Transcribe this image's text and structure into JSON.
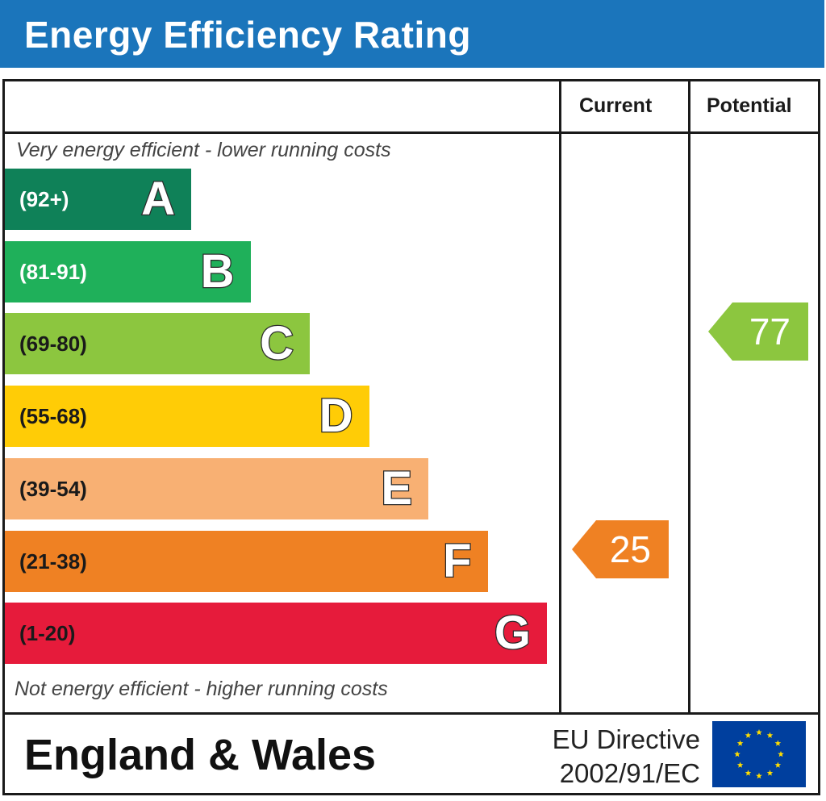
{
  "header": {
    "title": "Energy Efficiency Rating"
  },
  "columns": {
    "current": "Current",
    "potential": "Potential"
  },
  "captions": {
    "top": "Very energy efficient - lower running costs",
    "bottom": "Not energy efficient - higher running costs"
  },
  "chart_data": {
    "type": "bar",
    "categories": [
      "A",
      "B",
      "C",
      "D",
      "E",
      "F",
      "G"
    ],
    "ranges": [
      "(92+)",
      "(81-91)",
      "(69-80)",
      "(55-68)",
      "(39-54)",
      "(21-38)",
      "(1-20)"
    ],
    "range_min": [
      92,
      81,
      69,
      55,
      39,
      21,
      1
    ],
    "colors": [
      "#0f8158",
      "#1fb05a",
      "#8cc63f",
      "#ffcc06",
      "#f8b073",
      "#ef8123",
      "#e61b3b"
    ],
    "range_text_colors": [
      "#ffffff",
      "#ffffff",
      "#1a1a1a",
      "#1a1a1a",
      "#1a1a1a",
      "#1a1a1a",
      "#1a1a1a"
    ],
    "current": {
      "value": 25,
      "band": "F",
      "color": "#ef8123"
    },
    "potential": {
      "value": 77,
      "band": "C",
      "color": "#8cc63f"
    }
  },
  "footer": {
    "region": "England & Wales",
    "directive_line1": "EU Directive",
    "directive_line2": "2002/91/EC",
    "flag_icon": "eu-flag-icon"
  }
}
